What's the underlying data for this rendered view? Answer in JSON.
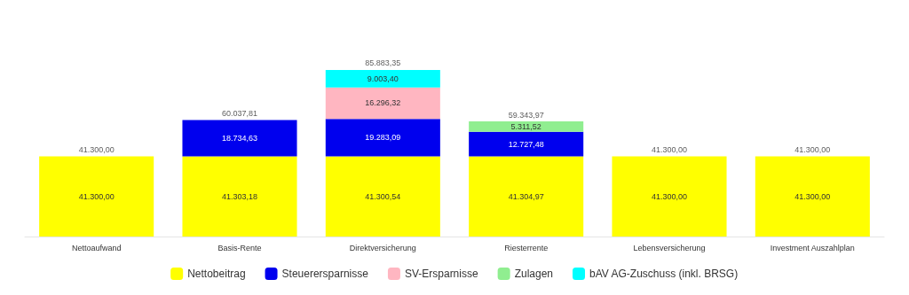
{
  "chart_data": {
    "type": "bar",
    "stacked": true,
    "categories": [
      "Nettoaufwand",
      "Basis-Rente",
      "Direktversicherung",
      "Riesterrente",
      "Lebensversicherung",
      "Investment Auszahlplan"
    ],
    "series": [
      {
        "name": "Nettobeitrag",
        "color": "#ffff00",
        "values": [
          41300.0,
          41303.18,
          41300.54,
          41304.97,
          41300.0,
          41300.0
        ],
        "value_labels": [
          "41.300,00",
          "41.303,18",
          "41.300,54",
          "41.304,97",
          "41.300,00",
          "41.300,00"
        ]
      },
      {
        "name": "Steuerersparnisse",
        "color": "#0000ee",
        "values": [
          null,
          18734.63,
          19283.09,
          12727.48,
          null,
          null
        ],
        "value_labels": [
          null,
          "18.734,63",
          "19.283,09",
          "12.727,48",
          null,
          null
        ]
      },
      {
        "name": "SV-Ersparnisse",
        "color": "#ffb6c1",
        "values": [
          null,
          null,
          16296.32,
          null,
          null,
          null
        ],
        "value_labels": [
          null,
          null,
          "16.296,32",
          null,
          null,
          null
        ]
      },
      {
        "name": "Zulagen",
        "color": "#90ee90",
        "values": [
          null,
          null,
          null,
          5311.52,
          null,
          null
        ],
        "value_labels": [
          null,
          null,
          null,
          "5.311,52",
          null,
          null
        ]
      },
      {
        "name": "bAV AG-Zuschuss (inkl. BRSG)",
        "color": "#00ffff",
        "values": [
          null,
          null,
          9003.4,
          null,
          null,
          null
        ],
        "value_labels": [
          null,
          null,
          "9.003,40",
          null,
          null,
          null
        ]
      }
    ],
    "totals": [
      "41.300,00",
      "60.037,81",
      "85.883,35",
      "59.343,97",
      "41.300,00",
      "41.300,00"
    ],
    "legend": "bottom"
  }
}
